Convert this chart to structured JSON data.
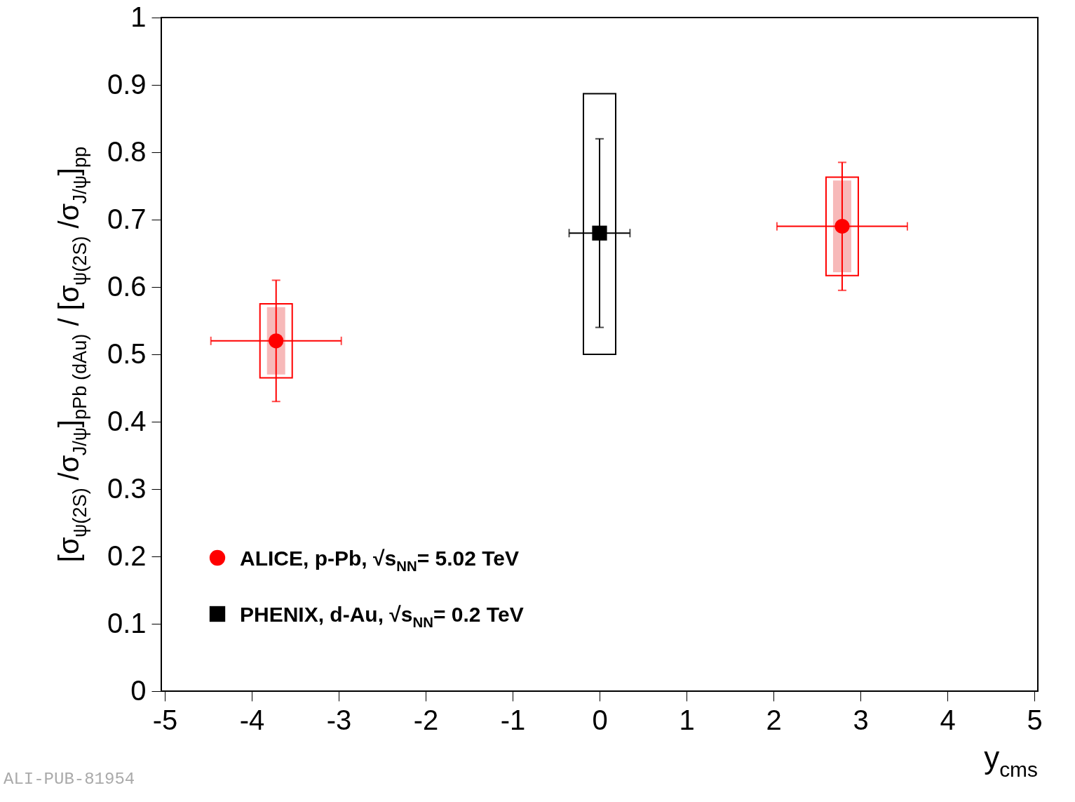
{
  "chart_data": {
    "type": "scatter",
    "xlabel": "y$_{cms}$",
    "ylabel": "[σ$_{ψ(2S)}$ /σ$_{J/ψ}$]$_{pPb (dAu)}$ / [σ$_{ψ(2S)}$ /σ$_{J/ψ}$]$_{pp}$",
    "xlim": [
      -5,
      5
    ],
    "xticks": [
      -5,
      -4,
      -3,
      -2,
      -1,
      0,
      1,
      2,
      3,
      4,
      5
    ],
    "ylim": [
      0,
      1
    ],
    "yticks": [
      0,
      0.1,
      0.2,
      0.3,
      0.4,
      0.5,
      0.6,
      0.7,
      0.8,
      0.9,
      1
    ],
    "series": [
      {
        "name": "ALICE, p-Pb, √s$_{NN}$= 5.02 TeV",
        "color": "#ff0000",
        "marker": "circle",
        "x": [
          -3.72,
          2.79
        ],
        "values": [
          0.52,
          0.69
        ],
        "errors": [
          0.09,
          0.095
        ],
        "xerrors": [
          0.75,
          0.75
        ]
      },
      {
        "name": "PHENIX, d-Au, √s$_{NN}$= 0.2 TeV",
        "color": "#000000",
        "marker": "square",
        "x": [
          0
        ],
        "values": [
          0.68
        ],
        "errors": [
          0.14
        ],
        "xerrors": [
          0.35
        ]
      },
      {
        "type": "bar",
        "color": "#f08080",
        "x": [
          -3.72,
          2.79
        ],
        "base": [
          0.47,
          0.622
        ],
        "values": [
          0.1,
          0.136
        ]
      },
      {
        "type": "bar",
        "color": "#ff0000",
        "line_style": "solid",
        "x": [
          -3.72,
          2.79
        ],
        "base": [
          0.465,
          0.617
        ],
        "values": [
          0.11,
          0.146
        ]
      },
      {
        "type": "bar",
        "color": "#000000",
        "line_style": "solid",
        "x": [
          0
        ],
        "base": [
          0.5
        ],
        "values": [
          0.387
        ]
      }
    ],
    "legend": "bottom left",
    "grid": false,
    "annotations": [
      "ALI-PUB-81954"
    ]
  }
}
